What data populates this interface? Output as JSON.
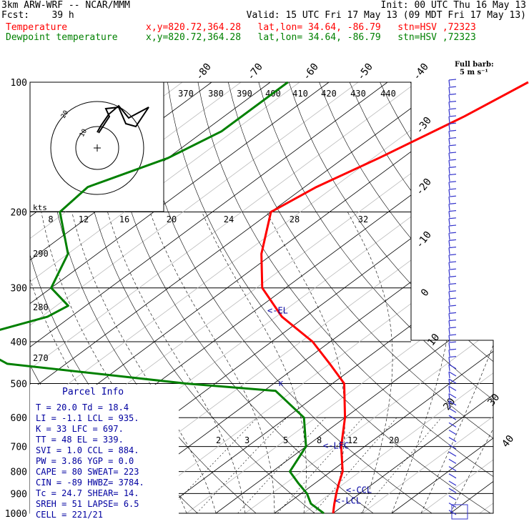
{
  "header": {
    "title_left": "3km ARW-WRF -- NCAR/MMM",
    "init": "Init: 00 UTC Thu 16 May 13",
    "fcst": "Fcst:    39 h",
    "valid": "Valid: 15 UTC Fri 17 May 13 (09 MDT Fri 17 May 13)",
    "temp_label": "Temperature",
    "dew_label": "Dewpoint temperature",
    "location": "x,y=820.72,364.28   lat,lon= 34.64, -86.79   stn=HSV ,72323"
  },
  "colors": {
    "temperature": "#ff0000",
    "dewpoint": "#008000",
    "axis": "#000000",
    "info": "#0000a0",
    "wind": "#3333cc"
  },
  "chart_data": {
    "type": "line",
    "pressure_levels": [
      100,
      200,
      300,
      400,
      500,
      600,
      700,
      800,
      900,
      1000
    ],
    "isotherm_labels": [
      "-80",
      "-70",
      "-60",
      "-50",
      "-40",
      "-30",
      "-20",
      "-10",
      "0",
      "10",
      "20",
      "30",
      "40"
    ],
    "mixing_ratio_labels": [
      "2",
      "3",
      "5",
      "8",
      "12",
      "20"
    ],
    "temperature": {
      "name": "Temperature",
      "points": [
        [
          100,
          -46
        ],
        [
          120,
          -49
        ],
        [
          150,
          -54
        ],
        [
          175,
          -58
        ],
        [
          200,
          -60
        ],
        [
          250,
          -52
        ],
        [
          300,
          -44
        ],
        [
          350,
          -34
        ],
        [
          400,
          -23
        ],
        [
          450,
          -15
        ],
        [
          500,
          -8
        ],
        [
          600,
          0
        ],
        [
          700,
          6
        ],
        [
          800,
          12
        ],
        [
          850,
          14
        ],
        [
          900,
          16
        ],
        [
          950,
          18
        ],
        [
          1000,
          20
        ]
      ]
    },
    "dewpoint": {
      "name": "Dewpoint temperature",
      "points": [
        [
          100,
          -87
        ],
        [
          130,
          -87
        ],
        [
          150,
          -90
        ],
        [
          175,
          -97
        ],
        [
          200,
          -96
        ],
        [
          250,
          -85
        ],
        [
          300,
          -80
        ],
        [
          330,
          -73
        ],
        [
          350,
          -74
        ],
        [
          380,
          -80
        ],
        [
          400,
          -82
        ],
        [
          450,
          -70
        ],
        [
          500,
          -35
        ],
        [
          520,
          -18
        ],
        [
          600,
          -7
        ],
        [
          700,
          0
        ],
        [
          800,
          3
        ],
        [
          850,
          7
        ],
        [
          900,
          11
        ],
        [
          950,
          14
        ],
        [
          1000,
          18.4
        ]
      ]
    },
    "markers": [
      {
        "label": "<-EL",
        "pressure": 339
      },
      {
        "label": "<-LFC",
        "pressure": 697
      },
      {
        "label": "<-CCL",
        "pressure": 884
      },
      {
        "label": "<-LCL",
        "pressure": 935
      }
    ]
  },
  "hodograph": {
    "units": "kts",
    "speed_labels": [
      "8",
      "12",
      "16",
      "20",
      "24",
      "28",
      "32"
    ],
    "ring_labels": [
      "10",
      "20"
    ],
    "theta_labels": [
      "370",
      "380",
      "390",
      "400",
      "410",
      "420",
      "430",
      "440"
    ],
    "theta_lower_labels": [
      "290",
      "280",
      "270"
    ]
  },
  "wind_legend": {
    "title": "Full barb:",
    "value": "5 m s⁻¹"
  },
  "parcel_info": {
    "title": "Parcel Info",
    "rows": [
      "T  =    20.0  Td =   18.4",
      "LI =    -1.1  LCL =  935.",
      "K  =      33  LFC =  697.",
      "TT =      48  EL  =  339.",
      "SVI =    1.0  CCL =  884.",
      "PW =    3.86  YGP =   0.0",
      "CAPE =    80  SWEAT=  223",
      "CIN =    -89  HWBZ= 3784.",
      "Tc =    24.7  SHEAR=   14.",
      "SREH =    51  LAPSE=  6.5",
      "CELL = 221/21"
    ]
  }
}
